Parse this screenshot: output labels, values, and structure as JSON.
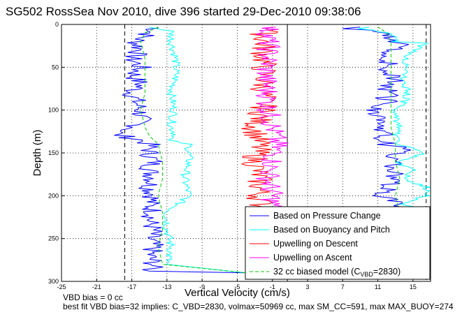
{
  "chart_data": {
    "type": "line",
    "title": "SG502 RossSea Nov 2010, dive 396 started 29-Dec-2010 09:38:06",
    "xlabel": "Vertical Velocity (cm/s)",
    "ylabel": "Depth (m)",
    "xlim": [
      -25,
      17
    ],
    "ylim": [
      0,
      300
    ],
    "y_reversed": true,
    "x_ticks": [
      "-25",
      "-21",
      "-17",
      "-13",
      "-9",
      "-5",
      "-1",
      "3",
      "7",
      "11",
      "15"
    ],
    "y_ticks": [
      "0",
      "50",
      "100",
      "150",
      "200",
      "250",
      "300"
    ],
    "grid": "dotted",
    "legend_position": "bottom-right",
    "series": [
      {
        "name": "Based on Pressure Change",
        "color": "#0000ff",
        "segments": [
          {
            "depth": [
              3,
              10,
              20,
              30,
              40,
              50,
              60,
              70,
              80,
              90,
              100,
              110,
              120,
              125,
              128,
              135,
              140,
              150,
              160,
              170,
              180,
              190,
              200,
              210,
              220,
              230,
              240,
              250,
              260,
              270,
              280,
              288,
              290
            ],
            "values": [
              -14,
              -15,
              -16.5,
              -16,
              -17,
              -16,
              -16.8,
              -16,
              -17,
              -16.5,
              -16,
              -16,
              -16.5,
              -18,
              -19,
              -16,
              -15,
              -15,
              -14.5,
              -15,
              -14.5,
              -15,
              -14.5,
              -15,
              -14.5,
              -15,
              -14.5,
              -15,
              -14.5,
              -15,
              -14.5,
              -15,
              -4
            ]
          },
          {
            "depth": [
              290,
              288,
              280,
              240,
              215,
              215,
              210,
              200,
              190,
              180,
              170,
              160,
              150,
              145,
              140,
              130,
              120,
              110,
              100,
              90,
              80,
              70,
              60,
              50,
              40,
              30,
              25,
              20,
              10,
              5,
              3
            ],
            "values": [
              -3.5,
              13,
              13,
              13,
              13,
              14.5,
              13,
              11.5,
              12,
              13,
              12.5,
              13,
              13,
              14,
              12,
              11.5,
              11.8,
              11.5,
              11,
              12,
              12,
              12.5,
              13,
              12,
              12.3,
              12.5,
              14,
              12.5,
              12,
              8,
              9
            ]
          }
        ]
      },
      {
        "name": "Based on Buoyancy and Pitch",
        "color": "#00ffff",
        "segments": [
          {
            "depth": [
              3,
              8,
              20,
              40,
              60,
              80,
              100,
              120,
              130,
              135,
              140,
              160,
              180,
              200,
              220,
              240,
              260,
              280,
              290
            ],
            "values": [
              -15,
              -12.5,
              -12.5,
              -12,
              -12,
              -12.5,
              -12.2,
              -12.5,
              -12,
              -13,
              -10.5,
              -10.5,
              -11,
              -10.5,
              -13,
              -13,
              -12.5,
              -13,
              -4
            ]
          },
          {
            "depth": [
              290,
              285,
              260,
              240,
              220,
              215,
              210,
              200,
              190,
              180,
              170,
              160,
              150,
              140,
              130,
              120,
              110,
              100,
              90,
              80,
              70,
              60,
              50,
              40,
              30,
              22,
              20,
              10,
              5,
              3
            ],
            "values": [
              -4,
              14,
              14,
              14,
              14,
              16.5,
              14,
              16.5,
              16.5,
              14,
              15,
              13,
              16.5,
              13.5,
              13,
              13.5,
              13,
              13,
              14,
              14.5,
              14,
              14,
              14.5,
              14,
              15,
              16.5,
              13,
              12.5,
              9,
              10
            ]
          }
        ]
      },
      {
        "name": "Upwelling on Descent",
        "color": "#ff0000",
        "segments": [
          {
            "depth": [
              3,
              10,
              20,
              40,
              60,
              80,
              100,
              110,
              120,
              140,
              160,
              180,
              200,
              220
            ],
            "values": [
              -0.5,
              -2,
              -2,
              -2,
              -2,
              -2,
              -2,
              -2.5,
              -3,
              -2.5,
              -3,
              -2.5,
              -2.5,
              -2
            ]
          }
        ]
      },
      {
        "name": "Upwelling on Ascent",
        "color": "#ff00ff",
        "segments": [
          {
            "depth": [
              3,
              10,
              20,
              40,
              60,
              80,
              100,
              110,
              120,
              140,
              160,
              180,
              200,
              220
            ],
            "values": [
              -1.5,
              -1.5,
              -1.5,
              -1.5,
              -1.8,
              -1.5,
              -1.5,
              -1.2,
              -1,
              -0.5,
              -1,
              -1.5,
              -1,
              -1
            ]
          }
        ]
      },
      {
        "name": "32 cc biased model (C_VBD=2830)",
        "color": "#00cc00",
        "dashed": true,
        "segments": [
          {
            "depth": [
              3,
              10,
              20,
              40,
              60,
              80,
              100,
              120,
              130,
              135,
              140,
              160,
              180,
              200,
              220,
              240,
              260,
              280,
              290
            ],
            "values": [
              -14,
              -15.5,
              -16,
              -15.5,
              -15.5,
              -15.5,
              -16,
              -15.5,
              -15,
              -14.5,
              -14,
              -13.5,
              -13.5,
              -14,
              -13.5,
              -13.5,
              -14,
              -13.5,
              -4
            ]
          },
          {
            "depth": [
              290,
              285,
              260,
              220,
              200,
              180,
              160,
              140,
              120,
              100,
              80,
              60,
              40,
              20,
              10,
              3
            ],
            "values": [
              -4,
              13,
              13.5,
              13.5,
              13,
              13.5,
              13,
              13,
              12.5,
              12.5,
              12.5,
              12.5,
              12.5,
              12.5,
              12,
              11
            ]
          }
        ]
      }
    ],
    "reference_lines_x": [
      {
        "x": -17.8,
        "style": "dashed",
        "color": "#000000"
      },
      {
        "x": 0.7,
        "style": "solid",
        "color": "#000000"
      },
      {
        "x": 16.5,
        "style": "dashed",
        "color": "#000000"
      }
    ]
  },
  "legend": {
    "items": [
      {
        "label": "Based on Pressure Change",
        "color": "#0000ff",
        "dashed": false
      },
      {
        "label": "Based on Buoyancy and Pitch",
        "color": "#00ffff",
        "dashed": false
      },
      {
        "label": "Upwelling on Descent",
        "color": "#ff0000",
        "dashed": false
      },
      {
        "label": "Upwelling on Ascent",
        "color": "#ff00ff",
        "dashed": false
      },
      {
        "label": "32 cc biased model (C",
        "sub": "VBD",
        "tail": "=2830)",
        "color": "#00cc00",
        "dashed": true
      }
    ]
  },
  "footer": {
    "line1": "VBD bias = 0 cc",
    "line2": "best fit VBD bias=32 implies: C_VBD=2830, volmax=50969 cc, max SM_CC=591, max MAX_BUOY=274"
  }
}
